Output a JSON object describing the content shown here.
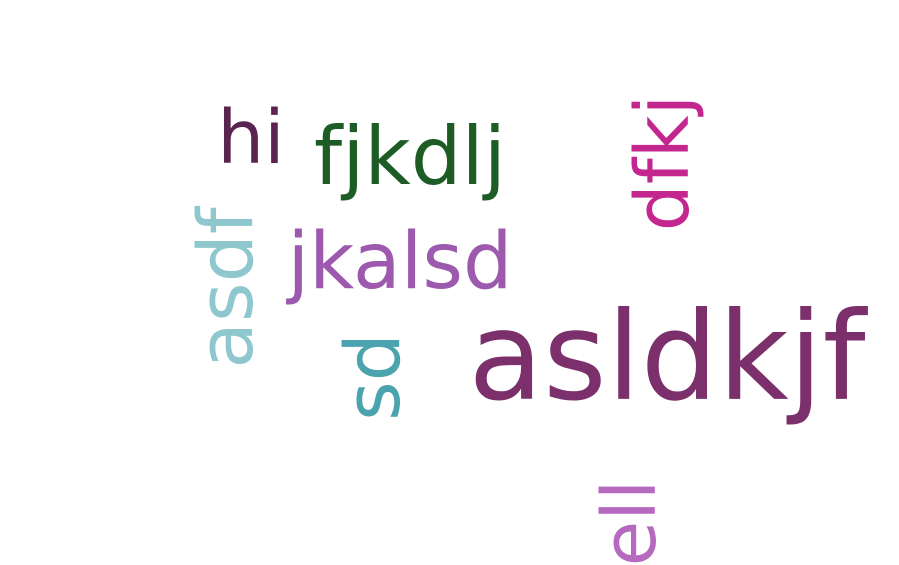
{
  "cloud": {
    "words": [
      {
        "text": "asldkjf",
        "color": "#7b2f6b"
      },
      {
        "text": "hi",
        "color": "#5a2450"
      },
      {
        "text": "fjkdlj",
        "color": "#1d5c25"
      },
      {
        "text": "dfkj",
        "color": "#c4268f"
      },
      {
        "text": "jkalsd",
        "color": "#9c59ad"
      },
      {
        "text": "asdf",
        "color": "#8fc7ce"
      },
      {
        "text": "sd",
        "color": "#4aa3ad"
      },
      {
        "text": "ell",
        "color": "#b56ac0"
      }
    ]
  }
}
